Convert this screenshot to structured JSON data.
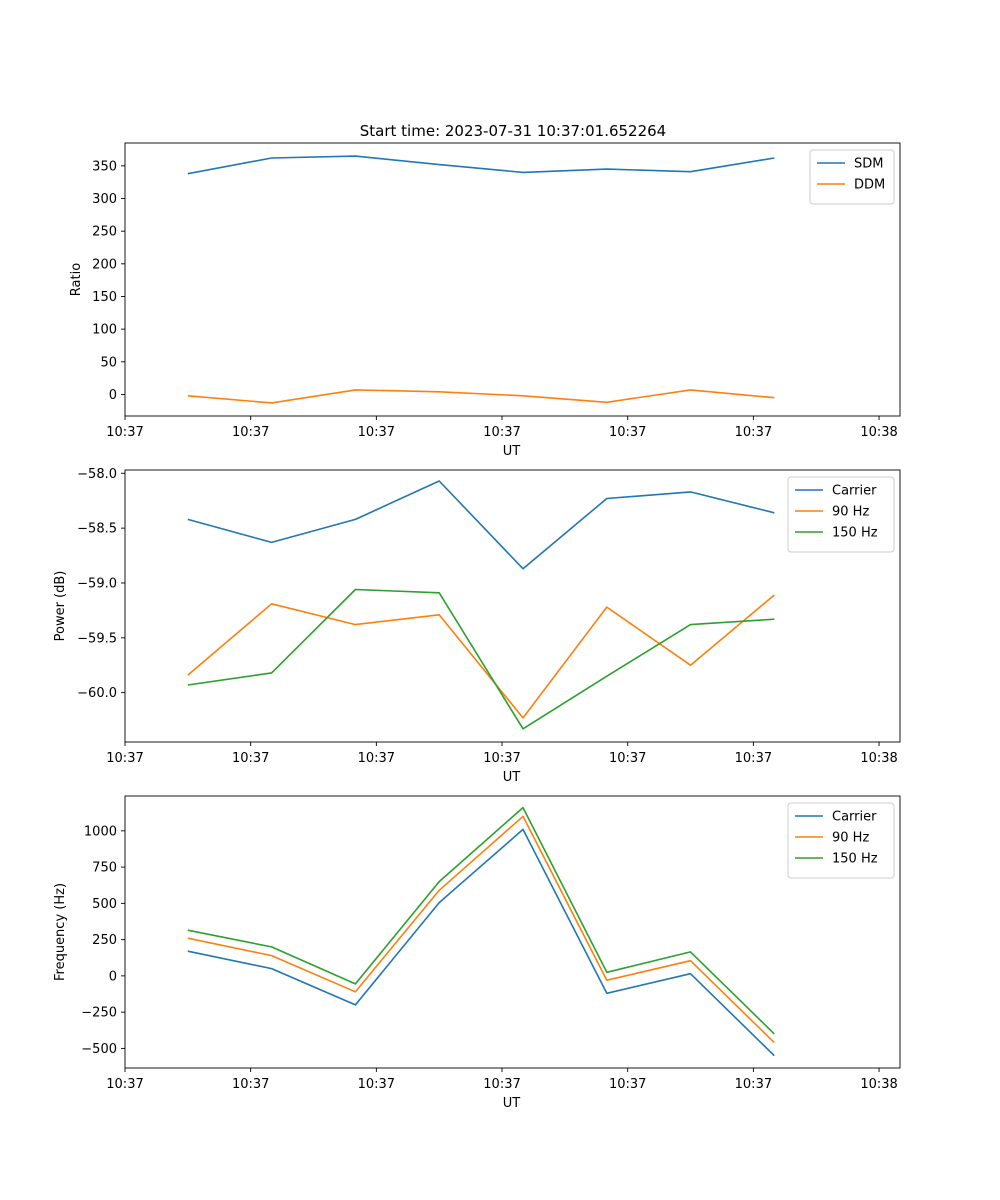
{
  "title": "Start time: 2023-07-31 10:37:01.652264",
  "colors": {
    "blue": "#1f77b4",
    "orange": "#ff7f0e",
    "green": "#2ca02c"
  },
  "chart_data": [
    {
      "type": "line",
      "xlabel": "UT",
      "ylabel": "Ratio",
      "xlim": [
        0,
        9.25
      ],
      "xticks": [
        0,
        1.5,
        3,
        4.5,
        6,
        7.5,
        9.0
      ],
      "xtick_labels": [
        "10:37",
        "10:37",
        "10:37",
        "10:37",
        "10:37",
        "10:37",
        "10:38"
      ],
      "ylim": [
        -33,
        385
      ],
      "yticks": [
        0,
        50,
        100,
        150,
        200,
        250,
        300,
        350
      ],
      "ytick_labels": [
        "0",
        "50",
        "100",
        "150",
        "200",
        "250",
        "300",
        "350"
      ],
      "x": [
        0.75,
        1.75,
        2.75,
        3.75,
        4.75,
        5.75,
        6.75,
        7.75
      ],
      "legend": "top-right",
      "series": [
        {
          "name": "SDM",
          "color": "#1f77b4",
          "values": [
            338,
            362,
            365,
            352,
            340,
            345,
            341,
            362
          ]
        },
        {
          "name": "DDM",
          "color": "#ff7f0e",
          "values": [
            -2,
            -13,
            7,
            4,
            -2,
            -12,
            7,
            -5
          ]
        }
      ]
    },
    {
      "type": "line",
      "xlabel": "UT",
      "ylabel": "Power (dB)",
      "xlim": [
        0,
        9.25
      ],
      "xticks": [
        0,
        1.5,
        3,
        4.5,
        6,
        7.5,
        9.0
      ],
      "xtick_labels": [
        "10:37",
        "10:37",
        "10:37",
        "10:37",
        "10:37",
        "10:37",
        "10:38"
      ],
      "ylim": [
        -60.45,
        -57.97
      ],
      "yticks": [
        -60.0,
        -59.5,
        -59.0,
        -58.5,
        -58.0
      ],
      "ytick_labels": [
        "−60.0",
        "−59.5",
        "−59.0",
        "−58.5",
        "−58.0"
      ],
      "x": [
        0.75,
        1.75,
        2.75,
        3.75,
        4.75,
        5.75,
        6.75,
        7.75
      ],
      "legend": "top-right",
      "series": [
        {
          "name": "Carrier",
          "color": "#1f77b4",
          "values": [
            -58.42,
            -58.63,
            -58.42,
            -58.07,
            -58.87,
            -58.23,
            -58.17,
            -58.36
          ]
        },
        {
          "name": "90 Hz",
          "color": "#ff7f0e",
          "values": [
            -59.84,
            -59.19,
            -59.38,
            -59.29,
            -60.23,
            -59.22,
            -59.75,
            -59.11
          ]
        },
        {
          "name": "150 Hz",
          "color": "#2ca02c",
          "values": [
            -59.93,
            -59.82,
            -59.06,
            -59.09,
            -60.33,
            -59.85,
            -59.38,
            -59.33
          ]
        }
      ]
    },
    {
      "type": "line",
      "xlabel": "UT",
      "ylabel": "Frequency (Hz)",
      "xlim": [
        0,
        9.25
      ],
      "xticks": [
        0,
        1.5,
        3,
        4.5,
        6,
        7.5,
        9.0
      ],
      "xtick_labels": [
        "10:37",
        "10:37",
        "10:37",
        "10:37",
        "10:37",
        "10:37",
        "10:38"
      ],
      "ylim": [
        -635,
        1240
      ],
      "yticks": [
        -500,
        -250,
        0,
        250,
        500,
        750,
        1000
      ],
      "ytick_labels": [
        "−500",
        "−250",
        "0",
        "250",
        "500",
        "750",
        "1000"
      ],
      "x": [
        0.75,
        1.75,
        2.75,
        3.75,
        4.75,
        5.75,
        6.75,
        7.75
      ],
      "legend": "top-right",
      "series": [
        {
          "name": "Carrier",
          "color": "#1f77b4",
          "values": [
            170,
            50,
            -200,
            505,
            1010,
            -120,
            15,
            -550
          ]
        },
        {
          "name": "90 Hz",
          "color": "#ff7f0e",
          "values": [
            260,
            140,
            -110,
            590,
            1100,
            -30,
            105,
            -460
          ]
        },
        {
          "name": "150 Hz",
          "color": "#2ca02c",
          "values": [
            315,
            200,
            -55,
            650,
            1160,
            25,
            165,
            -400
          ]
        }
      ]
    }
  ]
}
